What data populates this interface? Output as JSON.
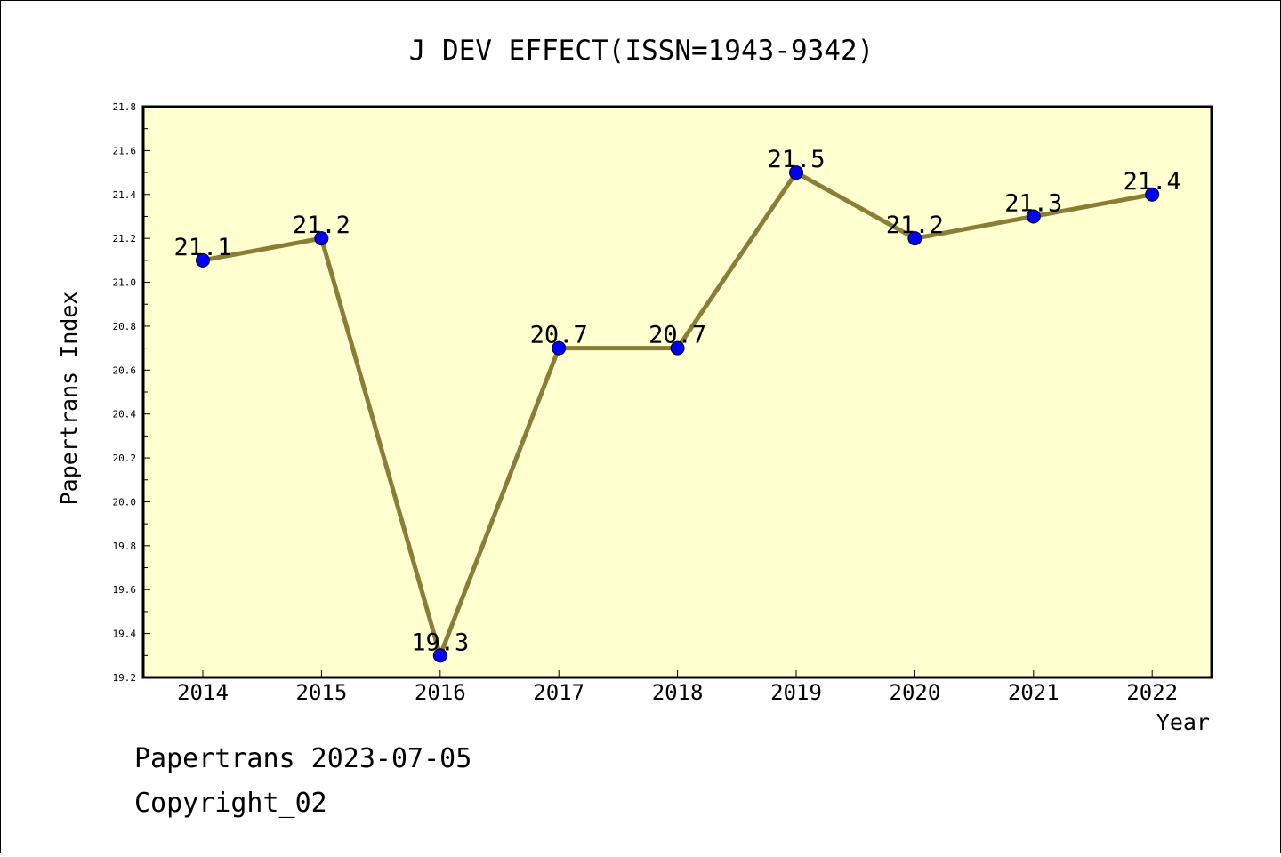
{
  "chart_data": {
    "type": "line",
    "title": "J DEV EFFECT(ISSN=1943-9342)",
    "xlabel": "Year",
    "ylabel": "Papertrans Index",
    "categories": [
      "2014",
      "2015",
      "2016",
      "2017",
      "2018",
      "2019",
      "2020",
      "2021",
      "2022"
    ],
    "series": [
      {
        "values": [
          21.1,
          21.2,
          19.3,
          20.7,
          20.7,
          21.5,
          21.2,
          21.3,
          21.4
        ],
        "data_labels": [
          "21.1",
          "21.2",
          "19.3",
          "20.7",
          "20.7",
          "21.5",
          "21.2",
          "21.3",
          "21.4"
        ]
      }
    ],
    "ylim": [
      19.2,
      21.8
    ],
    "yticks": [
      "19.2",
      "19.4",
      "19.6",
      "19.8",
      "20.0",
      "20.2",
      "20.4",
      "20.6",
      "20.8",
      "21.0",
      "21.2",
      "21.4",
      "21.6",
      "21.8"
    ],
    "grid": false,
    "colors": {
      "plot_background": "#ffffd0",
      "line": "#8b7d35",
      "marker": "#0000ff"
    }
  },
  "footer": {
    "date_line": "Papertrans 2023-07-05",
    "copyright": "Copyright_02"
  }
}
